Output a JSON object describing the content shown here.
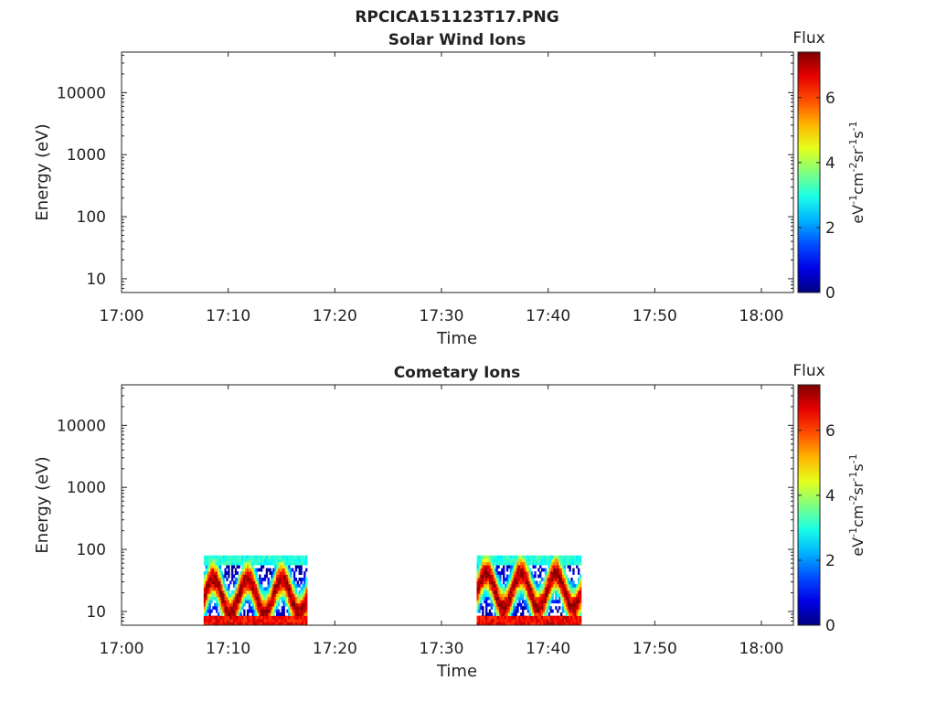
{
  "figure": {
    "title": "RPCICA151123T17.PNG"
  },
  "colorbar": {
    "label": "Flux",
    "unit_label": "eV-1cm-2sr-1s-1",
    "ticks": [
      "0",
      "2",
      "4",
      "6"
    ],
    "range": [
      0,
      7.4
    ],
    "colormap": "jet"
  },
  "chart_data": [
    {
      "type": "heatmap",
      "title": "Solar Wind Ions",
      "xlabel": "Time",
      "ylabel": "Energy (eV)",
      "x_ticks": [
        "17:00",
        "17:10",
        "17:20",
        "17:30",
        "17:40",
        "17:50",
        "18:00"
      ],
      "y_ticks": [
        "10",
        "100",
        "1000",
        "10000"
      ],
      "xlim": [
        "17:00",
        "18:03"
      ],
      "ylim": [
        6,
        45000
      ],
      "y_scale": "log",
      "blocks": []
    },
    {
      "type": "heatmap",
      "title": "Cometary Ions",
      "xlabel": "Time",
      "ylabel": "Energy (eV)",
      "x_ticks": [
        "17:00",
        "17:10",
        "17:20",
        "17:30",
        "17:40",
        "17:50",
        "18:00"
      ],
      "y_ticks": [
        "10",
        "100",
        "1000",
        "10000"
      ],
      "xlim": [
        "17:00",
        "18:03"
      ],
      "ylim": [
        6,
        45000
      ],
      "y_scale": "log",
      "blocks": [
        {
          "start": "17:07.7",
          "end": "17:17.4",
          "energy_range": [
            6,
            80
          ],
          "peak_flux": 7.2,
          "peak_energy": 18
        },
        {
          "start": "17:33.3",
          "end": "17:43.1",
          "energy_range": [
            6,
            80
          ],
          "peak_flux": 7.2,
          "peak_energy": 22
        }
      ]
    }
  ]
}
